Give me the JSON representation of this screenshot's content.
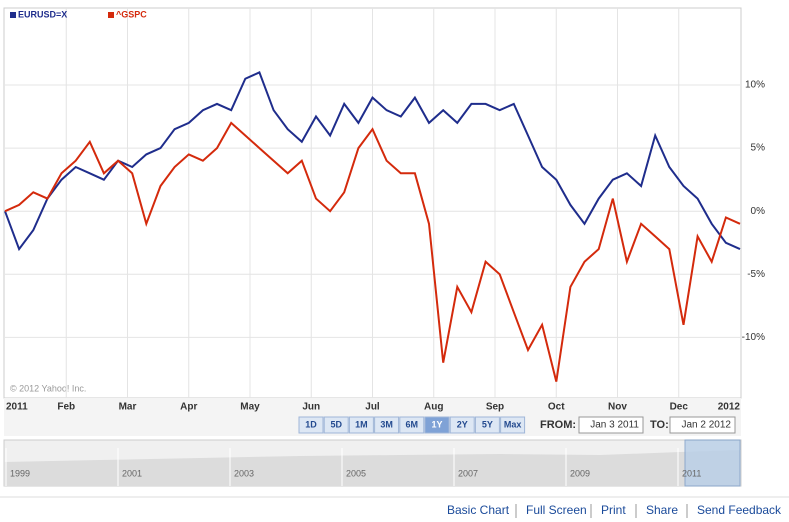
{
  "chart_data": {
    "type": "line",
    "x_labels": [
      "2011",
      "Feb",
      "Mar",
      "Apr",
      "May",
      "Jun",
      "Jul",
      "Aug",
      "Sep",
      "Oct",
      "Nov",
      "Dec",
      "2012"
    ],
    "ylim": [
      -14.8,
      16.1
    ],
    "yticks": [
      {
        "value": 10,
        "label": "10%"
      },
      {
        "value": 5,
        "label": "5%"
      },
      {
        "value": 0,
        "label": "0%"
      },
      {
        "value": -5,
        "label": "-5%"
      },
      {
        "value": -10,
        "label": "-10%"
      }
    ],
    "grid": true,
    "series": [
      {
        "name": "EURUSD=X",
        "color": "#1f2d8c",
        "values": [
          0,
          -3,
          -1.5,
          1,
          2.5,
          3.5,
          3,
          2.5,
          4,
          3.5,
          4.5,
          5,
          6.5,
          7,
          8,
          8.5,
          8,
          10.5,
          11,
          8,
          6.5,
          5.5,
          7.5,
          6,
          8.5,
          7,
          9,
          8,
          7.5,
          9,
          7,
          8,
          7,
          8.5,
          8.5,
          8,
          8.5,
          6,
          3.5,
          2.5,
          0.5,
          -1,
          1,
          2.5,
          3,
          2,
          6,
          3.5,
          2,
          1,
          -1,
          -2.5,
          -3
        ]
      },
      {
        "name": "^GSPC",
        "color": "#d42a0c",
        "values": [
          0,
          0.5,
          1.5,
          1,
          3,
          4,
          5.5,
          3,
          4,
          3,
          -1,
          2,
          3.5,
          4.5,
          4,
          5,
          7,
          6,
          5,
          4,
          3,
          4,
          1,
          0,
          1.5,
          5,
          6.5,
          4,
          3,
          3,
          -1,
          -12,
          -6,
          -8,
          -4,
          -5,
          -8,
          -11,
          -9,
          -13.5,
          -6,
          -4,
          -3,
          1,
          -4,
          -1,
          -2,
          -3,
          -9,
          -2,
          -4,
          -0.5,
          -1
        ]
      }
    ],
    "copyright": "© 2012 Yahoo! Inc."
  },
  "controls": {
    "ranges": [
      "1D",
      "5D",
      "1M",
      "3M",
      "6M",
      "1Y",
      "2Y",
      "5Y",
      "Max"
    ],
    "active_range": "1Y",
    "from_label": "FROM:",
    "from_value": "Jan 3 2011",
    "to_label": "TO:",
    "to_value": "Jan 2 2012"
  },
  "navigator": {
    "years": [
      "1999",
      "2001",
      "2003",
      "2005",
      "2007",
      "2009",
      "2011"
    ]
  },
  "footer_links": [
    "Basic Chart",
    "Full Screen",
    "Print",
    "Share",
    "Send Feedback"
  ]
}
